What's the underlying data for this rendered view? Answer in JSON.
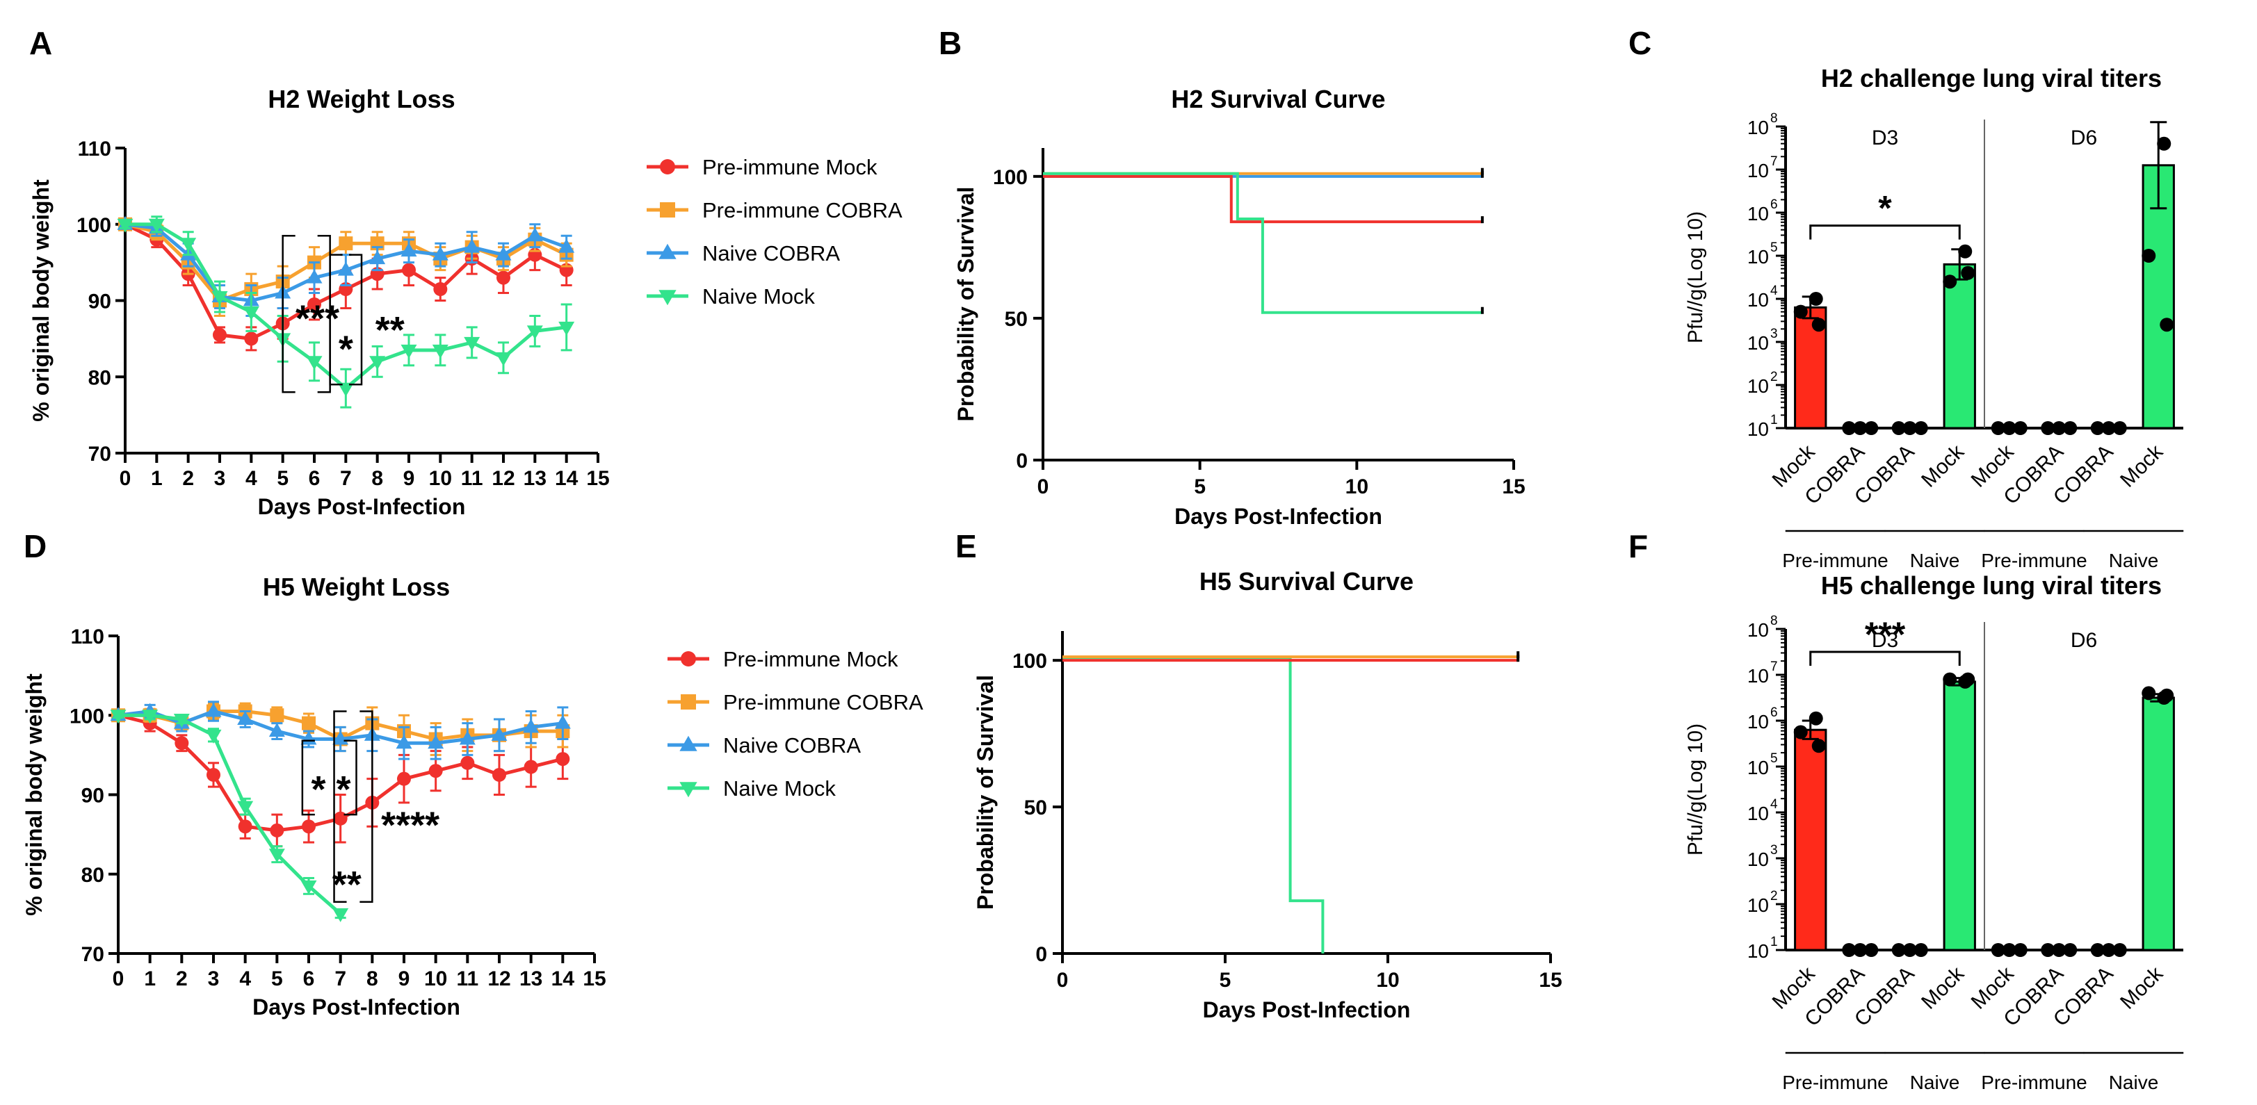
{
  "colors": {
    "pre_mock": "#f0312d",
    "pre_cobra": "#f7a12f",
    "naive_cobra": "#3b9ae6",
    "naive_mock": "#33e38c",
    "axis": "#000000",
    "bar_mock_red": "#ff2a1a",
    "bar_mock_green": "#29e873",
    "sig_star": "#000000"
  },
  "panels": {
    "A": {
      "letter": "A"
    },
    "B": {
      "letter": "B"
    },
    "C": {
      "letter": "C"
    },
    "D": {
      "letter": "D"
    },
    "E": {
      "letter": "E"
    },
    "F": {
      "letter": "F"
    }
  },
  "chart_data": [
    {
      "panel": "A",
      "type": "line",
      "title": "H2 Weight Loss",
      "xlabel": "Days Post-Infection",
      "ylabel": "% original body weight",
      "xlim": [
        0,
        15
      ],
      "ylim": [
        70,
        110
      ],
      "xticks": [
        "0",
        "1",
        "2",
        "3",
        "4",
        "5",
        "6",
        "7",
        "8",
        "9",
        "10",
        "11",
        "12",
        "13",
        "14",
        "15"
      ],
      "yticks": [
        "70",
        "80",
        "90",
        "100",
        "110"
      ],
      "legend": [
        "Pre-immune Mock",
        "Pre-immune COBRA",
        "Naive COBRA",
        "Naive Mock"
      ],
      "legend_loc": "right",
      "series": [
        {
          "name": "Pre-immune Mock",
          "color": "#f0312d",
          "marker": "circle",
          "x": [
            0,
            1,
            2,
            3,
            4,
            5,
            6,
            7,
            8,
            9,
            10,
            11,
            12,
            13,
            14
          ],
          "y": [
            100,
            98,
            93.5,
            85.5,
            85,
            87,
            89.5,
            91.5,
            93.5,
            94,
            91.5,
            95.5,
            93,
            96,
            94
          ],
          "err": [
            0.6,
            1,
            1.5,
            1,
            1.5,
            2,
            2,
            2.5,
            2,
            2,
            1.5,
            2,
            2,
            2,
            2
          ]
        },
        {
          "name": "Pre-immune COBRA",
          "color": "#f7a12f",
          "marker": "square",
          "x": [
            0,
            1,
            2,
            3,
            4,
            5,
            6,
            7,
            8,
            9,
            10,
            11,
            12,
            13,
            14
          ],
          "y": [
            100,
            99,
            95,
            90,
            91.5,
            92.5,
            95,
            97.5,
            97.5,
            97.5,
            95.5,
            97,
            95.5,
            98,
            96
          ],
          "err": [
            0.5,
            1,
            1.5,
            2,
            2,
            2,
            2,
            1.5,
            1.5,
            1.5,
            1.5,
            1.5,
            1.5,
            1.5,
            1.5
          ]
        },
        {
          "name": "Naive COBRA",
          "color": "#3b9ae6",
          "marker": "triangle-up",
          "x": [
            0,
            1,
            2,
            3,
            4,
            5,
            6,
            7,
            8,
            9,
            10,
            11,
            12,
            13,
            14
          ],
          "y": [
            100,
            99.5,
            96,
            90.5,
            90,
            91,
            93,
            94,
            95.5,
            96.5,
            96,
            97,
            96,
            98.5,
            97
          ],
          "err": [
            0.5,
            1,
            1.5,
            1.5,
            2,
            2,
            2,
            2,
            1.5,
            1.5,
            1.5,
            2,
            1.5,
            1.5,
            1.5
          ]
        },
        {
          "name": "Naive Mock",
          "color": "#33e38c",
          "marker": "triangle-down",
          "x": [
            0,
            1,
            2,
            3,
            4,
            5,
            6,
            7,
            8,
            9,
            10,
            11,
            12,
            13,
            14
          ],
          "y": [
            100,
            100,
            97.5,
            90.5,
            88.5,
            85,
            82,
            78.5,
            82,
            83.5,
            83.5,
            84.5,
            82.5,
            86,
            86.5
          ],
          "err": [
            0.5,
            1,
            1.5,
            2,
            2.5,
            3,
            2.5,
            2.5,
            2,
            2,
            2,
            2,
            2,
            2,
            3
          ]
        }
      ],
      "annotations": [
        {
          "text": "***",
          "x": 6.1,
          "y": 88
        },
        {
          "text": "*",
          "x": 7,
          "y": 84
        },
        {
          "text": "**",
          "x": 8.4,
          "y": 86.5
        }
      ],
      "brackets": [
        {
          "x0": 5,
          "x1": 6.5,
          "y0": 78,
          "y1": 98.5
        },
        {
          "x0": 6.5,
          "x1": 7.5,
          "y0": 79,
          "y1": 96
        }
      ]
    },
    {
      "panel": "B",
      "type": "line",
      "title": "H2 Survival Curve",
      "xlabel": "Days Post-Infection",
      "ylabel": "Probability of Survival",
      "xlim": [
        0,
        15
      ],
      "ylim": [
        0,
        110
      ],
      "xticks": [
        "0",
        "5",
        "10",
        "15"
      ],
      "yticks": [
        "0",
        "50",
        "100"
      ],
      "series": [
        {
          "name": "Pre-immune COBRA",
          "color": "#f7a12f",
          "steps": [
            [
              0,
              101
            ],
            [
              14,
              101
            ]
          ]
        },
        {
          "name": "Naive COBRA",
          "color": "#3b9ae6",
          "steps": [
            [
              0,
              100
            ],
            [
              14,
              100
            ]
          ]
        },
        {
          "name": "Pre-immune Mock",
          "color": "#f0312d",
          "steps": [
            [
              0,
              100
            ],
            [
              6,
              100
            ],
            [
              6,
              84
            ],
            [
              14,
              84
            ]
          ]
        },
        {
          "name": "Naive Mock",
          "color": "#33e38c",
          "steps": [
            [
              0,
              101
            ],
            [
              6.2,
              101
            ],
            [
              6.2,
              85
            ],
            [
              7,
              85
            ],
            [
              7,
              52
            ],
            [
              14,
              52
            ]
          ]
        }
      ]
    },
    {
      "panel": "C",
      "type": "bar",
      "title": "H2 challenge lung viral titers",
      "ylabel": "Pfu//g(Log 10)",
      "yscale": "log",
      "ylim_log10": [
        1,
        8
      ],
      "yticks": [
        "10",
        "10",
        "10",
        "10",
        "10",
        "10",
        "10",
        "10"
      ],
      "ytick_exponents": [
        "1",
        "2",
        "3",
        "4",
        "5",
        "6",
        "7",
        "8"
      ],
      "categories": [
        "Mock",
        "COBRA",
        "COBRA",
        "Mock",
        "Mock",
        "COBRA",
        "COBRA",
        "Mock"
      ],
      "group_labels": [
        "Pre-immune",
        "Naive",
        "Pre-immune",
        "Naive"
      ],
      "section_labels": [
        "D3",
        "D6"
      ],
      "values_log10": [
        3.8,
        1,
        1,
        4.8,
        1,
        1,
        1,
        7.1
      ],
      "err_log10": [
        0.25,
        0,
        0,
        0.35,
        0,
        0,
        0,
        1.0
      ],
      "points_log10": [
        [
          4,
          3.7,
          3.4
        ],
        [
          1,
          1,
          1
        ],
        [
          1,
          1,
          1
        ],
        [
          5.1,
          4.4,
          4.6
        ],
        [
          1,
          1,
          1
        ],
        [
          1,
          1,
          1
        ],
        [
          1,
          1,
          1
        ],
        [
          7.6,
          5,
          3.4
        ]
      ],
      "bar_colors": [
        "#ff2a1a",
        "#ff2a1a",
        "#ff2a1a",
        "#29e873",
        "#ff2a1a",
        "#ff2a1a",
        "#ff2a1a",
        "#29e873"
      ],
      "significance": {
        "text": "*",
        "from": 0,
        "to": 3,
        "y_log10": 5.7
      }
    },
    {
      "panel": "D",
      "type": "line",
      "title": "H5 Weight Loss",
      "xlabel": "Days Post-Infection",
      "ylabel": "% original body weight",
      "xlim": [
        0,
        15
      ],
      "ylim": [
        70,
        110
      ],
      "xticks": [
        "0",
        "1",
        "2",
        "3",
        "4",
        "5",
        "6",
        "7",
        "8",
        "9",
        "10",
        "11",
        "12",
        "13",
        "14",
        "15"
      ],
      "yticks": [
        "70",
        "80",
        "90",
        "100",
        "110"
      ],
      "legend": [
        "Pre-immune Mock",
        "Pre-immune COBRA",
        "Naive COBRA",
        "Naive Mock"
      ],
      "legend_loc": "right",
      "series": [
        {
          "name": "Pre-immune Mock",
          "color": "#f0312d",
          "marker": "circle",
          "x": [
            0,
            1,
            2,
            3,
            4,
            5,
            6,
            7,
            8,
            9,
            10,
            11,
            12,
            13,
            14
          ],
          "y": [
            100,
            99,
            96.5,
            92.5,
            86,
            85.5,
            86,
            87,
            89,
            92,
            93,
            94,
            92.5,
            93.5,
            94.5
          ],
          "err": [
            0.5,
            1,
            1,
            1.5,
            1.5,
            2,
            2,
            3,
            3,
            3,
            2.5,
            2,
            2.5,
            2.5,
            2.5
          ]
        },
        {
          "name": "Pre-immune COBRA",
          "color": "#f7a12f",
          "marker": "square",
          "x": [
            0,
            1,
            2,
            3,
            4,
            5,
            6,
            7,
            8,
            9,
            10,
            11,
            12,
            13,
            14
          ],
          "y": [
            100,
            100,
            99,
            100.5,
            100.5,
            100,
            99,
            97,
            99,
            98,
            97,
            97.5,
            97.5,
            98,
            98
          ],
          "err": [
            0.5,
            0.8,
            0.8,
            1,
            1,
            1,
            1.2,
            1.5,
            2,
            2,
            2,
            2,
            2,
            2,
            2
          ]
        },
        {
          "name": "Naive COBRA",
          "color": "#3b9ae6",
          "marker": "triangle-up",
          "x": [
            0,
            1,
            2,
            3,
            4,
            5,
            6,
            7,
            8,
            9,
            10,
            11,
            12,
            13,
            14
          ],
          "y": [
            100,
            100.5,
            99,
            100.5,
            99.5,
            98,
            97,
            97,
            97.5,
            96.5,
            96.5,
            97,
            97.5,
            98.5,
            99
          ],
          "err": [
            0.5,
            0.8,
            1,
            1.2,
            1,
            1,
            1,
            1.5,
            2,
            2,
            2,
            2,
            2,
            2,
            2
          ]
        },
        {
          "name": "Naive Mock",
          "color": "#33e38c",
          "marker": "triangle-down",
          "x": [
            0,
            1,
            2,
            3,
            4,
            5,
            6,
            7
          ],
          "y": [
            100,
            100,
            99.5,
            97.5,
            88.5,
            82.5,
            78.5,
            75
          ],
          "err": [
            0.3,
            0.5,
            0.5,
            0.8,
            1,
            1,
            1,
            0.5
          ]
        }
      ],
      "annotations": [
        {
          "text": "* *",
          "x": 6.7,
          "y": 91
        },
        {
          "text": "**",
          "x": 7.2,
          "y": 79
        },
        {
          "text": "****",
          "x": 9.2,
          "y": 86.5
        }
      ],
      "brackets": [
        {
          "x0": 5.8,
          "x1": 7.5,
          "y0": 87.5,
          "y1": 96.8
        },
        {
          "x0": 6.8,
          "x1": 8,
          "y0": 76.5,
          "y1": 100.5
        }
      ]
    },
    {
      "panel": "E",
      "type": "line",
      "title": "H5 Survival Curve",
      "xlabel": "Days Post-Infection",
      "ylabel": "Probability of Survival",
      "xlim": [
        0,
        15
      ],
      "ylim": [
        0,
        110
      ],
      "xticks": [
        "0",
        "5",
        "10",
        "15"
      ],
      "yticks": [
        "0",
        "50",
        "100"
      ],
      "series": [
        {
          "name": "Naive Mock",
          "color": "#33e38c",
          "steps": [
            [
              0,
              101
            ],
            [
              7,
              101
            ],
            [
              7,
              18
            ],
            [
              8,
              18
            ],
            [
              8,
              0
            ]
          ]
        },
        {
          "name": "Pre-immune COBRA",
          "color": "#f7a12f",
          "steps": [
            [
              0,
              101.2
            ],
            [
              14,
              101.2
            ]
          ]
        },
        {
          "name": "Pre-immune Mock",
          "color": "#f0312d",
          "steps": [
            [
              0,
              100
            ],
            [
              14,
              100
            ]
          ]
        }
      ]
    },
    {
      "panel": "F",
      "type": "bar",
      "title": "H5 challenge lung viral titers",
      "ylabel": "Pfu//g(Log 10)",
      "yscale": "log",
      "ylim_log10": [
        1,
        8
      ],
      "yticks": [
        "10",
        "10",
        "10",
        "10",
        "10",
        "10",
        "10",
        "10"
      ],
      "ytick_exponents": [
        "1",
        "2",
        "3",
        "4",
        "5",
        "6",
        "7",
        "8"
      ],
      "categories": [
        "Mock",
        "COBRA",
        "COBRA",
        "Mock",
        "Mock",
        "COBRA",
        "COBRA",
        "Mock"
      ],
      "group_labels": [
        "Pre-immune",
        "Naive",
        "Pre-immune",
        "Naive"
      ],
      "section_labels": [
        "D3",
        "D6"
      ],
      "values_log10": [
        5.8,
        1,
        1,
        6.85,
        1,
        1,
        1,
        6.5
      ],
      "err_log10": [
        0.2,
        0,
        0,
        0.08,
        0,
        0,
        0,
        0.08
      ],
      "points_log10": [
        [
          6.05,
          5.75,
          5.45
        ],
        [
          1,
          1,
          1
        ],
        [
          1,
          1,
          1
        ],
        [
          6.85,
          6.9,
          6.9
        ],
        [
          1,
          1,
          1
        ],
        [
          1,
          1,
          1
        ],
        [
          1,
          1,
          1
        ],
        [
          6.5,
          6.6,
          6.55
        ]
      ],
      "bar_colors": [
        "#ff2a1a",
        "#ff2a1a",
        "#ff2a1a",
        "#29e873",
        "#ff2a1a",
        "#ff2a1a",
        "#ff2a1a",
        "#29e873"
      ],
      "significance": {
        "text": "***",
        "from": 0,
        "to": 3,
        "y_log10": 7.5
      }
    }
  ]
}
